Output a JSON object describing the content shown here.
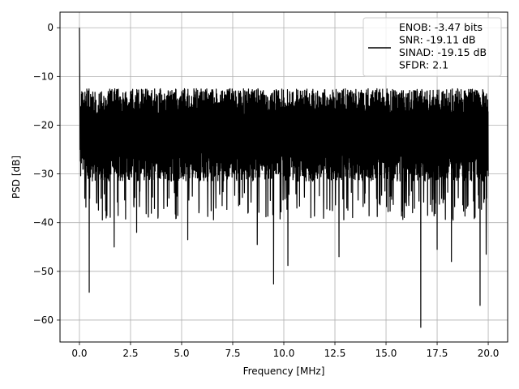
{
  "chart_data": {
    "type": "line",
    "title": "",
    "xlabel": "Frequency [MHz]",
    "ylabel": "PSD [dB]",
    "xlim": [
      -0.95,
      20.95
    ],
    "ylim": [
      -64.5,
      3.2
    ],
    "xticks": [
      0.0,
      2.5,
      5.0,
      7.5,
      10.0,
      12.5,
      15.0,
      17.5,
      20.0
    ],
    "xtick_labels": [
      "0.0",
      "2.5",
      "5.0",
      "7.5",
      "10.0",
      "12.5",
      "15.0",
      "17.5",
      "20.0"
    ],
    "yticks": [
      0,
      -10,
      -20,
      -30,
      -40,
      -50,
      -60
    ],
    "ytick_labels": [
      "0",
      "−10",
      "−20",
      "−30",
      "−40",
      "−50",
      "−60"
    ],
    "grid": true,
    "legend_position": "top-right",
    "legend_lines": [
      "ENOB: -3.47 bits",
      "SNR: -19.11 dB",
      "SINAD: -19.15 dB",
      "SFDR: 2.1"
    ],
    "series_color": "#000000",
    "noise_band": {
      "top_db": -12.5,
      "bottom_db": -31.5,
      "mean_db": -21.5
    },
    "peak": {
      "x": 0.0,
      "y": 0.0
    },
    "notable_dips": [
      {
        "x": 0.48,
        "y": -54.3
      },
      {
        "x": 1.7,
        "y": -45.0
      },
      {
        "x": 2.8,
        "y": -42.0
      },
      {
        "x": 5.3,
        "y": -43.5
      },
      {
        "x": 8.7,
        "y": -44.5
      },
      {
        "x": 9.5,
        "y": -52.6
      },
      {
        "x": 10.2,
        "y": -48.8
      },
      {
        "x": 12.7,
        "y": -47.0
      },
      {
        "x": 16.7,
        "y": -61.5
      },
      {
        "x": 17.5,
        "y": -45.5
      },
      {
        "x": 18.2,
        "y": -48.0
      },
      {
        "x": 19.6,
        "y": -57.0
      },
      {
        "x": 19.9,
        "y": -46.5
      }
    ]
  }
}
